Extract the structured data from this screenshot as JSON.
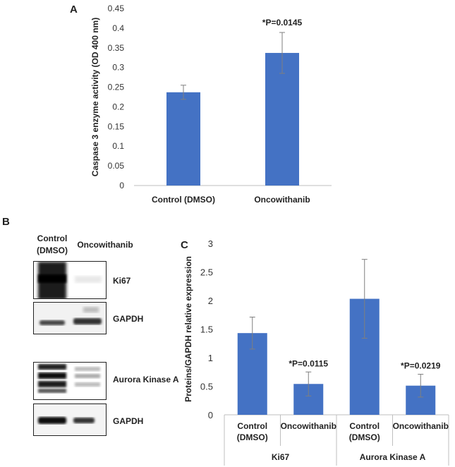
{
  "panels": {
    "a": "A",
    "b": "B",
    "c": "C"
  },
  "western_blot": {
    "header_control_line1": "Control",
    "header_control_line2": "(DMSO)",
    "header_treatment": "Oncowithanib",
    "blots": [
      {
        "label": "Ki67"
      },
      {
        "label": "GAPDH"
      },
      {
        "label": "Aurora Kinase A"
      },
      {
        "label": "GAPDH"
      }
    ]
  },
  "chart_data": [
    {
      "type": "bar",
      "title": "",
      "categories": [
        "Control (DMSO)",
        "Oncowithanib"
      ],
      "values": [
        0.237,
        0.337
      ],
      "errors": [
        0.018,
        0.052
      ],
      "annotations": [
        "",
        "*P=0.0145"
      ],
      "xlabel": "",
      "ylabel": "Caspase 3 enzyme activity (OD  400 nm)",
      "ylim": [
        0,
        0.45
      ],
      "yticks": [
        "0",
        "0.05",
        "0.1",
        "0.15",
        "0.2",
        "0.25",
        "0.3",
        "0.35",
        "0.4",
        "0.45"
      ],
      "grid": false,
      "bar_color": "#4472c4"
    },
    {
      "type": "bar",
      "title": "",
      "groups": [
        "Ki67",
        "Aurora Kinase A"
      ],
      "categories": [
        {
          "line1": "Control",
          "line2": "(DMSO)",
          "group": 0
        },
        {
          "line1": "Oncowithanib",
          "line2": "",
          "group": 0
        },
        {
          "line1": "Control",
          "line2": "(DMSO)",
          "group": 1
        },
        {
          "line1": "Oncowithanib",
          "line2": "",
          "group": 1
        }
      ],
      "values": [
        1.43,
        0.54,
        2.03,
        0.51
      ],
      "errors": [
        0.28,
        0.21,
        0.69,
        0.2
      ],
      "annotations": [
        "",
        "*P=0.0115",
        "",
        "*P=0.0219"
      ],
      "xlabel": "",
      "ylabel": "Proteins/GAPDH relative expression",
      "ylim": [
        0,
        3
      ],
      "yticks": [
        "0",
        "0.5",
        "1",
        "1.5",
        "2",
        "2.5",
        "3"
      ],
      "grid": false,
      "bar_color": "#4472c4"
    }
  ]
}
